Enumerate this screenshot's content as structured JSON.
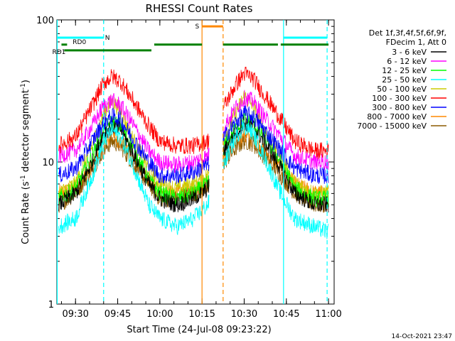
{
  "chart_data": {
    "type": "line",
    "title": "RHESSI Count Rates",
    "xlabel": "Start Time (24-Jul-08 09:23:22)",
    "ylabel": "Count Rate (s⁻¹ detector segment⁻¹)",
    "ylabel_parts": {
      "main": "Count Rate (s",
      "sup1": "-1",
      "mid": " detector segment",
      "sup2": "-1",
      "end": ")"
    },
    "y_scale": "log",
    "ylim": [
      1,
      100
    ],
    "xlim": [
      "09:23:22",
      "11:02:00"
    ],
    "x_ticks": [
      "09:30",
      "09:45",
      "10:00",
      "10:15",
      "10:30",
      "10:45",
      "11:00"
    ],
    "y_ticks": [
      "1",
      "10",
      "100"
    ],
    "grid": false,
    "legend": {
      "placement": "right",
      "header": [
        "Det 1f,3f,4f,5f,6f,9f,",
        "FDecim 1, Att 0"
      ],
      "entries": [
        {
          "name": "3 - 6 keV",
          "color": "#000000"
        },
        {
          "name": "6 - 12 keV",
          "color": "#ff00ff"
        },
        {
          "name": "12 - 25 keV",
          "color": "#00ff00"
        },
        {
          "name": "25 - 50 keV",
          "color": "#00ffff"
        },
        {
          "name": "50 - 100 keV",
          "color": "#cccc00"
        },
        {
          "name": "100 - 300 keV",
          "color": "#ff0000"
        },
        {
          "name": "300 - 800 keV",
          "color": "#0000ff"
        },
        {
          "name": "800 - 7000 keV",
          "color": "#ff8800"
        },
        {
          "name": "7000 - 15000 keV",
          "color": "#8b5a00"
        }
      ]
    },
    "segments": [
      {
        "start": "09:23:22",
        "end": "10:17:30"
      },
      {
        "start": "10:22:30",
        "end": "11:02:00"
      }
    ],
    "series": [
      {
        "name": "3 - 6 keV",
        "color": "#000000",
        "x": [
          "09:24",
          "09:30",
          "09:36",
          "09:40",
          "09:43",
          "09:46",
          "09:50",
          "09:56",
          "10:00",
          "10:06",
          "10:12",
          "10:17",
          "10:23",
          "10:27",
          "10:30",
          "10:33",
          "10:37",
          "10:43",
          "10:48",
          "10:55",
          "11:00"
        ],
        "y": [
          5,
          6,
          10,
          16,
          18,
          17,
          12,
          7,
          5.5,
          5,
          5.5,
          6.5,
          12,
          16,
          19,
          18,
          14,
          9,
          6,
          5,
          5
        ]
      },
      {
        "name": "6 - 12 keV",
        "color": "#ff00ff",
        "x": [
          "09:24",
          "09:30",
          "09:36",
          "09:40",
          "09:43",
          "09:46",
          "09:50",
          "09:56",
          "10:00",
          "10:06",
          "10:12",
          "10:17",
          "10:23",
          "10:27",
          "10:30",
          "10:33",
          "10:37",
          "10:43",
          "10:48",
          "10:55",
          "11:00"
        ],
        "y": [
          11,
          12,
          18,
          25,
          27,
          25,
          19,
          12,
          10,
          9.5,
          10,
          11,
          18,
          24,
          28,
          27,
          21,
          15,
          11,
          10,
          10
        ]
      },
      {
        "name": "12 - 25 keV",
        "color": "#00ff00",
        "x": [
          "09:24",
          "09:30",
          "09:36",
          "09:40",
          "09:43",
          "09:46",
          "09:50",
          "09:56",
          "10:00",
          "10:06",
          "10:12",
          "10:17",
          "10:23",
          "10:27",
          "10:30",
          "10:33",
          "10:37",
          "10:43",
          "10:48",
          "10:55",
          "11:00"
        ],
        "y": [
          5.5,
          6.5,
          11,
          17,
          19,
          18,
          13,
          7.5,
          6,
          5.5,
          6,
          7,
          13,
          17,
          20,
          19,
          15,
          10,
          6.5,
          5.5,
          5.5
        ]
      },
      {
        "name": "25 - 50 keV",
        "color": "#00ffff",
        "x": [
          "09:24",
          "09:30",
          "09:36",
          "09:40",
          "09:43",
          "09:46",
          "09:50",
          "09:56",
          "10:00",
          "10:06",
          "10:12",
          "10:17",
          "10:23",
          "10:27",
          "10:30",
          "10:33",
          "10:37",
          "10:43",
          "10:48",
          "10:55",
          "11:00"
        ],
        "y": [
          3.5,
          4,
          8,
          14,
          17,
          15,
          10,
          5,
          4,
          3.5,
          4,
          5,
          10,
          15,
          18,
          16,
          11,
          6,
          4,
          3.5,
          3.2
        ]
      },
      {
        "name": "50 - 100 keV",
        "color": "#cccc00",
        "x": [
          "09:24",
          "09:30",
          "09:36",
          "09:40",
          "09:43",
          "09:46",
          "09:50",
          "09:56",
          "10:00",
          "10:06",
          "10:12",
          "10:17",
          "10:23",
          "10:27",
          "10:30",
          "10:33",
          "10:37",
          "10:43",
          "10:48",
          "10:55",
          "11:00"
        ],
        "y": [
          6,
          7,
          13,
          22,
          27,
          23,
          15,
          9,
          7,
          6.5,
          7,
          8,
          15,
          22,
          29,
          25,
          17,
          11,
          7,
          6,
          6
        ]
      },
      {
        "name": "100 - 300 keV",
        "color": "#ff0000",
        "x": [
          "09:24",
          "09:30",
          "09:36",
          "09:40",
          "09:43",
          "09:46",
          "09:50",
          "09:56",
          "10:00",
          "10:06",
          "10:12",
          "10:17",
          "10:23",
          "10:27",
          "10:30",
          "10:33",
          "10:37",
          "10:43",
          "10:48",
          "10:55",
          "11:00"
        ],
        "y": [
          13,
          15,
          25,
          36,
          40,
          37,
          28,
          18,
          14,
          13,
          13,
          14,
          25,
          35,
          42,
          39,
          30,
          20,
          14,
          12,
          12
        ]
      },
      {
        "name": "300 - 800 keV",
        "color": "#0000ff",
        "x": [
          "09:24",
          "09:30",
          "09:36",
          "09:40",
          "09:43",
          "09:46",
          "09:50",
          "09:56",
          "10:00",
          "10:06",
          "10:12",
          "10:17",
          "10:23",
          "10:27",
          "10:30",
          "10:33",
          "10:37",
          "10:43",
          "10:48",
          "10:55",
          "11:00"
        ],
        "y": [
          8,
          9,
          14,
          19,
          21,
          20,
          15,
          10,
          8,
          8,
          8.5,
          9.5,
          15,
          19,
          22,
          21,
          17,
          12,
          9,
          8,
          8
        ]
      },
      {
        "name": "800 - 7000 keV",
        "color": "#ff8800",
        "x": [
          "09:24",
          "09:30",
          "09:36",
          "09:40",
          "09:43",
          "09:46",
          "09:50",
          "09:56",
          "10:00",
          "10:06",
          "10:12",
          "10:17",
          "10:23",
          "10:27",
          "10:30",
          "10:33",
          "10:37",
          "10:43",
          "10:48",
          "10:55",
          "11:00"
        ],
        "y": [
          6,
          6.5,
          9.5,
          13,
          15,
          14,
          11,
          7.5,
          6,
          6,
          6.5,
          7,
          11,
          13.5,
          15,
          14.5,
          12,
          9,
          7,
          6,
          6
        ]
      },
      {
        "name": "7000 - 15000 keV",
        "color": "#8b5a00",
        "x": [
          "09:24",
          "09:30",
          "09:36",
          "09:40",
          "09:43",
          "09:46",
          "09:50",
          "09:56",
          "10:00",
          "10:06",
          "10:12",
          "10:17",
          "10:23",
          "10:27",
          "10:30",
          "10:33",
          "10:37",
          "10:43",
          "10:48",
          "10:55",
          "11:00"
        ],
        "y": [
          5,
          6,
          9,
          12,
          14,
          13,
          10,
          7,
          5.5,
          5.5,
          6,
          6.5,
          10,
          12.5,
          14,
          13.5,
          11,
          8,
          6,
          5,
          5
        ]
      }
    ],
    "vertical_lines": [
      {
        "x": "09:23:30",
        "color": "#00ffff",
        "style": "solid"
      },
      {
        "x": "09:40:00",
        "color": "#00ffff",
        "style": "dashed"
      },
      {
        "x": "10:15:00",
        "color": "#ff8800",
        "style": "solid"
      },
      {
        "x": "10:22:30",
        "color": "#ff8800",
        "style": "dashed"
      },
      {
        "x": "10:44:00",
        "color": "#00ffff",
        "style": "solid"
      },
      {
        "x": "10:59:30",
        "color": "#00ffff",
        "style": "dashed"
      }
    ],
    "flag_bars": [
      {
        "label": "N",
        "color": "#00ffff",
        "y": 75,
        "ranges": [
          [
            "09:23:22",
            "09:40:00"
          ],
          [
            "10:44:00",
            "10:59:30"
          ]
        ]
      },
      {
        "label": "RD0",
        "color": "#008000",
        "y": 67,
        "ranges": [
          [
            "09:25:00",
            "09:27:00"
          ],
          [
            "09:58:00",
            "10:15:00"
          ],
          [
            "10:22:30",
            "10:42:00"
          ],
          [
            "10:43:00",
            "11:00:00"
          ]
        ]
      },
      {
        "label": "RD1",
        "color": "#008000",
        "y": 61,
        "ranges": [
          [
            "09:26:00",
            "09:57:00"
          ]
        ]
      },
      {
        "label": "S",
        "color": "#ff8800",
        "y": 90,
        "ranges": [
          [
            "10:15:00",
            "10:22:30"
          ]
        ]
      }
    ],
    "timestamp": "14-Oct-2021 23:47"
  }
}
